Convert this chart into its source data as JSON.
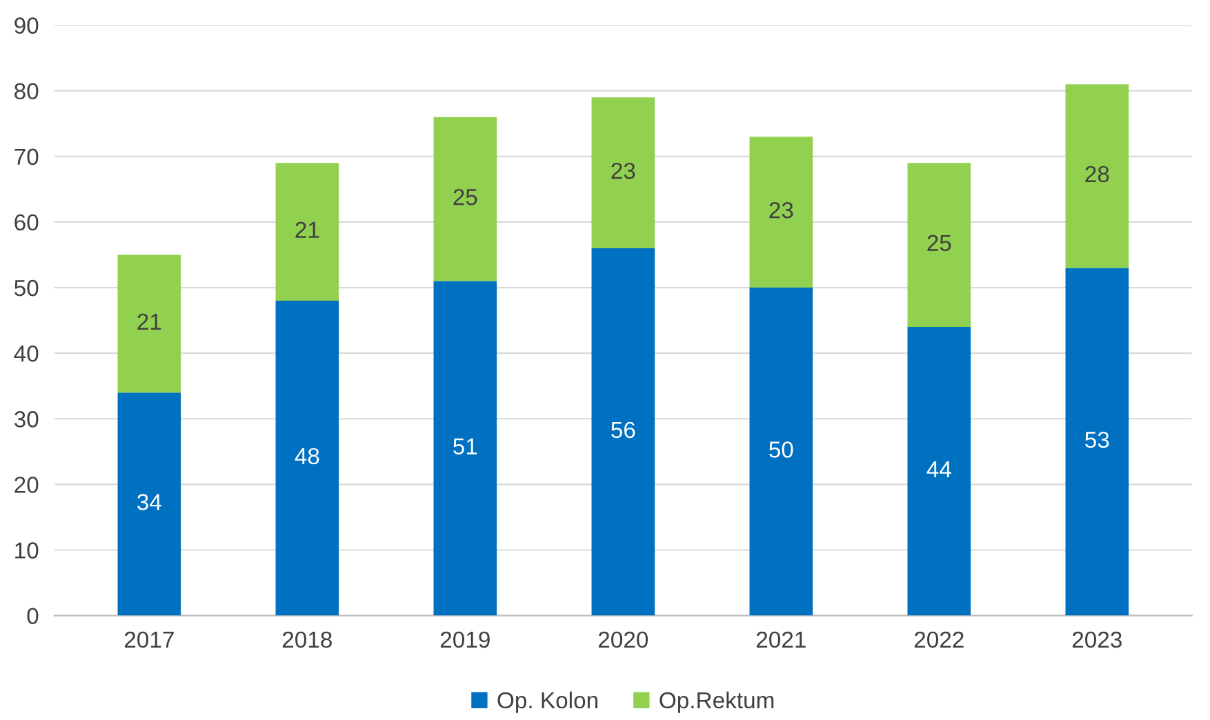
{
  "chart_data": {
    "type": "bar",
    "stacked": true,
    "categories": [
      "2017",
      "2018",
      "2019",
      "2020",
      "2021",
      "2022",
      "2023"
    ],
    "series": [
      {
        "name": "Op. Kolon",
        "color": "#0070c0",
        "values": [
          34,
          48,
          51,
          56,
          50,
          44,
          53
        ]
      },
      {
        "name": "Op.Rektum",
        "color": "#92d050",
        "values": [
          21,
          21,
          25,
          23,
          23,
          25,
          28
        ]
      }
    ],
    "ylim": [
      0,
      90
    ],
    "yticks": [
      0,
      10,
      20,
      30,
      40,
      50,
      60,
      70,
      80,
      90
    ],
    "grid": "y",
    "legend": "bottom",
    "data_labels": true
  }
}
